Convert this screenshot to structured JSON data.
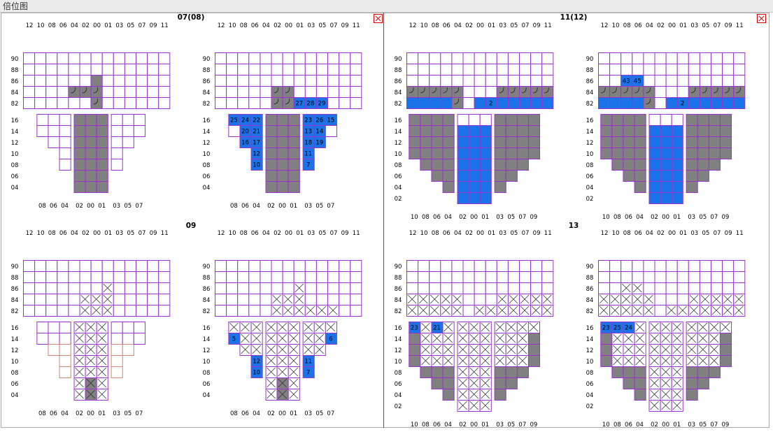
{
  "window": {
    "title": "倍位图"
  },
  "colors": {
    "grid_purple": "#9933cc",
    "grid_salmon": "#cc8877",
    "occupied": "#808080",
    "loading": "#1a73e8",
    "text": "#000000",
    "close_red": "#dd0000"
  },
  "icons": {
    "close": "close-x-icon"
  },
  "bays": [
    {
      "label": "07(08)"
    },
    {
      "label": "11(12)"
    },
    {
      "label": "09"
    },
    {
      "label": "13"
    }
  ],
  "rows": {
    "deck_wide": [
      "12",
      "10",
      "08",
      "06",
      "04",
      "02",
      "00",
      "01",
      "03",
      "05",
      "07",
      "09",
      "11"
    ],
    "hold_narrow_bottom": [
      "08",
      "06",
      "04",
      "02",
      "00",
      "01",
      "03",
      "05",
      "07"
    ],
    "hold_wide_bottom": [
      "10",
      "08",
      "06",
      "04",
      "02",
      "00",
      "01",
      "03",
      "05",
      "07",
      "09"
    ]
  },
  "tiers": {
    "deck": [
      "90",
      "88",
      "86",
      "84",
      "82"
    ],
    "hold_short": [
      "16",
      "14",
      "12",
      "10",
      "08",
      "06",
      "04"
    ],
    "hold_long": [
      "16",
      "14",
      "12",
      "10",
      "08",
      "06",
      "04",
      "02"
    ]
  },
  "panels": [
    {
      "bay": 0,
      "side": "left",
      "hold": "narrow",
      "deck": {
        "gray": [
          "4,3",
          "5,3",
          "6,2",
          "6,3",
          "6,4"
        ],
        "blue": {}
      },
      "hold_grid": {
        "gray": "all_center",
        "blue": {}
      }
    },
    {
      "bay": 0,
      "side": "right",
      "hold": "narrow",
      "deck": {
        "gray": [
          "5,3",
          "5,4",
          "6,3",
          "6,4"
        ],
        "blue": {
          "7,4": "27",
          "8,4": "28",
          "9,4": "29"
        }
      },
      "hold_grid": {
        "gray": "all_center",
        "blue": {
          "0,0": "25",
          "1,0": "24",
          "2,0": "22",
          "1,1": "20",
          "2,1": "21",
          "1,2": "16",
          "2,2": "17",
          "2,3": "12",
          "2,4": "10",
          "6,0": "23",
          "7,0": "26",
          "8,0": "15",
          "6,1": "13",
          "7,1": "14",
          "6,2": "18",
          "7,2": "19",
          "6,3": "11",
          "6,4": "7"
        }
      }
    },
    {
      "bay": 1,
      "side": "left",
      "hold": "wide"
    },
    {
      "bay": 1,
      "side": "right",
      "hold": "wide"
    },
    {
      "bay": 2,
      "side": "left",
      "hold": "narrow"
    },
    {
      "bay": 2,
      "side": "right",
      "hold": "narrow",
      "blue": {
        "0,1": "5",
        "0,2": "9",
        "1,3": "3",
        "2,3": "12",
        "2,4": "10",
        "2,5": "2",
        "8,1": "6",
        "8,2": "4",
        "6,3": "11",
        "7,3": "8",
        "6,4": "7",
        "6,5": "1"
      }
    },
    {
      "bay": 3,
      "side": "left",
      "hold": "wide",
      "blue": {
        "0,0": "23",
        "2,0": "21"
      }
    },
    {
      "bay": 3,
      "side": "right",
      "hold": "wide",
      "blue": {
        "0,0": "23",
        "1,0": "25",
        "2,0": "24"
      }
    }
  ]
}
